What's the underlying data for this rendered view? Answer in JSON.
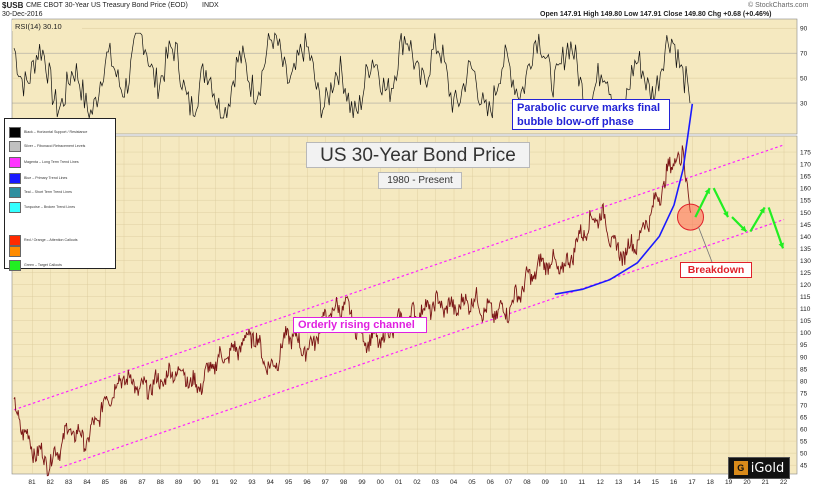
{
  "header": {
    "symbol": "$USB",
    "description": "CME CBOT 30-Year US Treasury Bond Price (EOD)",
    "exchange": "INDX",
    "date": "30-Dec-2016",
    "copyright": "© StockCharts.com",
    "ohlc": "Open 147.91  High 149.80  Low 147.91  Close 149.80  Chg +0.68 (+0.46%)"
  },
  "rsi_label": "RSI(14) 30.10",
  "title": "US 30-Year Bond Price",
  "subtitle": "1980 - Present",
  "annotations": {
    "parabolic_line1": "Parabolic curve marks final",
    "parabolic_line2": "bubble blow-off phase",
    "breakdown": "Breakdown",
    "channel": "Orderly rising channel"
  },
  "legend": [
    {
      "label": "Black – Horizontal Support / Resistance",
      "color": "#000000"
    },
    {
      "label": "Silver – Fibonacci Retracement Levels",
      "color": "#c0c0c0"
    },
    {
      "label": "Magenta – Long Term Trend Lines",
      "color": "#ff33ff"
    },
    {
      "label": "Blue – Primary Trend Lines",
      "color": "#1a1aff"
    },
    {
      "label": "Teal – Short Term Trend Lines",
      "color": "#2f8f9f"
    },
    {
      "label": "Turquoise – Broken Trend Lines",
      "color": "#33ffff"
    },
    {
      "label": "Red / Orange – Attention Callouts",
      "color": "#ff2a00"
    },
    {
      "label": "Orange",
      "color": "#ff8c00"
    },
    {
      "label": "Green – Target Callouts",
      "color": "#22ee22"
    }
  ],
  "logo_text": "iGold",
  "chart_data": {
    "type": "line",
    "series": [
      {
        "x": [
          "1980",
          "1981",
          "1982",
          "1983",
          "1984",
          "1985",
          "1986",
          "1987",
          "1988",
          "1989",
          "1990",
          "1991",
          "1992",
          "1993",
          "1994",
          "1995",
          "1996",
          "1997",
          "1998",
          "1999",
          "2000",
          "2001",
          "2002",
          "2003",
          "2004",
          "2005",
          "2006",
          "2007",
          "2008",
          "2009",
          "2010",
          "2011",
          "2012",
          "2013",
          "2014",
          "2015",
          "2016",
          "2016-07",
          "2016-12"
        ],
        "values": [
          68,
          52,
          46,
          60,
          55,
          72,
          82,
          76,
          80,
          85,
          77,
          88,
          92,
          100,
          84,
          100,
          92,
          106,
          112,
          98,
          97,
          104,
          108,
          112,
          110,
          114,
          108,
          110,
          122,
          130,
          126,
          142,
          150,
          132,
          138,
          154,
          172,
          175,
          149.8
        ]
      }
    ],
    "rsi": {
      "name": "RSI(14)",
      "last": 30.1,
      "ylim": [
        0,
        100
      ],
      "ticks": [
        30,
        50,
        70,
        90
      ]
    },
    "x_ticks": [
      "81",
      "82",
      "83",
      "84",
      "85",
      "86",
      "87",
      "88",
      "89",
      "90",
      "91",
      "92",
      "93",
      "94",
      "95",
      "96",
      "97",
      "98",
      "99",
      "00",
      "01",
      "02",
      "03",
      "04",
      "05",
      "06",
      "07",
      "08",
      "09",
      "10",
      "11",
      "12",
      "13",
      "14",
      "15",
      "16",
      "17",
      "18",
      "19",
      "20",
      "21",
      "22"
    ],
    "y_ticks": [
      45,
      50,
      55,
      60,
      65,
      70,
      75,
      80,
      85,
      90,
      95,
      100,
      105,
      110,
      115,
      120,
      125,
      130,
      135,
      140,
      145,
      150,
      155,
      160,
      165,
      170,
      175
    ],
    "ylim": [
      43,
      180
    ],
    "channel": {
      "upper": [
        [
          1980,
          68
        ],
        [
          2022,
          178
        ]
      ],
      "lower": [
        [
          1982.5,
          44
        ],
        [
          2022,
          147
        ]
      ]
    },
    "parabola": [
      [
        2009.5,
        116
      ],
      [
        2011,
        118
      ],
      [
        2012.5,
        122
      ],
      [
        2014,
        129
      ],
      [
        2015.2,
        140
      ],
      [
        2016,
        153
      ],
      [
        2016.5,
        168
      ],
      [
        2017,
        195
      ]
    ],
    "breakdown_point": [
      2016.9,
      148
    ],
    "target_path": [
      [
        2017,
        148
      ],
      [
        2018,
        160
      ],
      [
        2019,
        148
      ],
      [
        2020,
        142
      ],
      [
        2021,
        152
      ],
      [
        2022,
        135
      ]
    ]
  }
}
